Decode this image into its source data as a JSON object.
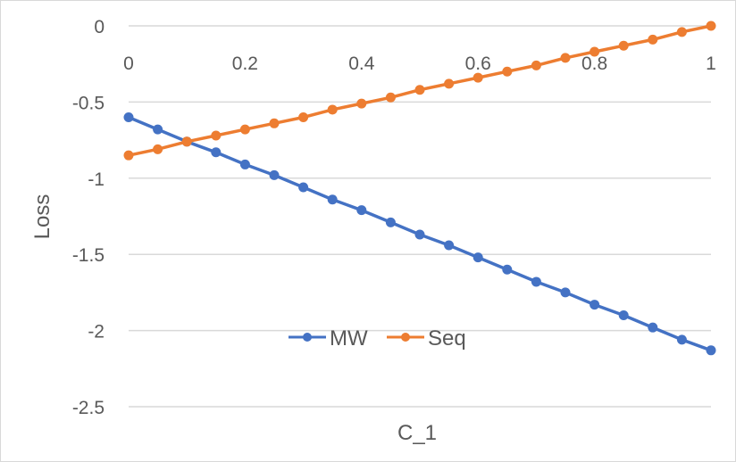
{
  "chart_data": {
    "type": "line",
    "title": "",
    "xlabel": "C_1",
    "ylabel": "Loss",
    "x": [
      0,
      0.05,
      0.1,
      0.15,
      0.2,
      0.25,
      0.3,
      0.35,
      0.4,
      0.45,
      0.5,
      0.55,
      0.6,
      0.65,
      0.7,
      0.75,
      0.8,
      0.85,
      0.9,
      0.95,
      1
    ],
    "xlim": [
      0,
      1
    ],
    "ylim": [
      -2.5,
      0
    ],
    "xticks": [
      0,
      0.2,
      0.4,
      0.6,
      0.8,
      1
    ],
    "xtick_labels": [
      "0",
      "0.2",
      "0.4",
      "0.6",
      "0.8",
      "1"
    ],
    "yticks": [
      0,
      -0.5,
      -1,
      -1.5,
      -2,
      -2.5
    ],
    "ytick_labels": [
      "0",
      "-0.5",
      "-1",
      "-1.5",
      "-2",
      "-2.5"
    ],
    "grid": "horizontal",
    "x_axis_position": "top, at y=0",
    "legend": "inside, lower center",
    "series": [
      {
        "name": "MW",
        "color": "#4472c4",
        "values": [
          -0.6,
          -0.68,
          -0.76,
          -0.83,
          -0.91,
          -0.98,
          -1.06,
          -1.14,
          -1.21,
          -1.29,
          -1.37,
          -1.44,
          -1.52,
          -1.6,
          -1.68,
          -1.75,
          -1.83,
          -1.9,
          -1.98,
          -2.06,
          -2.13
        ]
      },
      {
        "name": "Seq",
        "color": "#ed7d31",
        "values": [
          -0.85,
          -0.81,
          -0.76,
          -0.72,
          -0.68,
          -0.64,
          -0.6,
          -0.55,
          -0.51,
          -0.47,
          -0.42,
          -0.38,
          -0.34,
          -0.3,
          -0.26,
          -0.21,
          -0.17,
          -0.13,
          -0.09,
          -0.04,
          0.0
        ]
      }
    ]
  }
}
